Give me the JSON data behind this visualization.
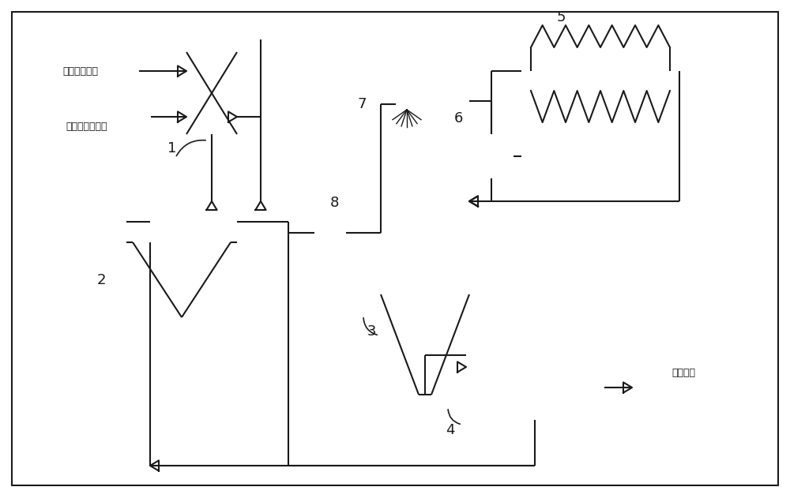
{
  "bg_color": "#ffffff",
  "line_color": "#1a1a1a",
  "label1": "无机盐原料液",
  "label2": "低础无机盐溶液",
  "label_out": "十水芒础",
  "num1": "1",
  "num2": "2",
  "num3": "3",
  "num4": "4",
  "num5": "5",
  "num6": "6",
  "num7": "7",
  "num8": "8"
}
